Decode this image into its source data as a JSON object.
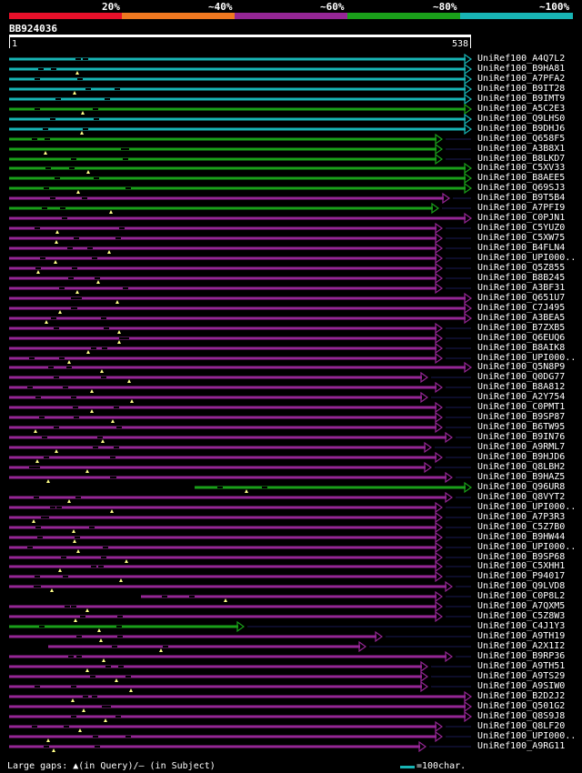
{
  "query": {
    "id": "BB924036",
    "start": "1",
    "end": "538"
  },
  "scale": {
    "labels": [
      "20%",
      "~40%",
      "~60%",
      "~80%",
      "~100%"
    ],
    "colors": [
      "#e8102a",
      "#f07820",
      "#952695",
      "#1aa01a",
      "#18b4b4"
    ]
  },
  "legend": {
    "text": "Large gaps: ▲(in Query)/— (in Subject)",
    "scale_text": "=100char."
  },
  "hits": [
    {
      "name": "UniRef100_A4Q7L2",
      "color": "cyan",
      "end": 518
    },
    {
      "name": "UniRef100_B9HA81",
      "color": "cyan",
      "end": 518
    },
    {
      "name": "UniRef100_A7PFA2",
      "color": "cyan",
      "end": 518
    },
    {
      "name": "UniRef100_B9IT28",
      "color": "cyan",
      "end": 518
    },
    {
      "name": "UniRef100_B9IMT9",
      "color": "cyan",
      "end": 518
    },
    {
      "name": "UniRef100_A5C2E3",
      "color": "green",
      "end": 518
    },
    {
      "name": "UniRef100_Q9LHS0",
      "color": "cyan",
      "end": 518
    },
    {
      "name": "UniRef100_B9DHJ6",
      "color": "cyan",
      "end": 518
    },
    {
      "name": "UniRef100_Q658F5",
      "color": "green",
      "end": 486
    },
    {
      "name": "UniRef100_A3B8X1",
      "color": "green",
      "end": 486
    },
    {
      "name": "UniRef100_B8LKD7",
      "color": "green",
      "end": 486
    },
    {
      "name": "UniRef100_C5XV33",
      "color": "green",
      "end": 518
    },
    {
      "name": "UniRef100_B8AEE5",
      "color": "green",
      "end": 518
    },
    {
      "name": "UniRef100_Q69SJ3",
      "color": "green",
      "end": 518
    },
    {
      "name": "UniRef100_B9T5B4",
      "color": "purple",
      "end": 494
    },
    {
      "name": "UniRef100_A7PFI9",
      "color": "green",
      "end": 482
    },
    {
      "name": "UniRef100_C0PJN1",
      "color": "purple",
      "end": 518
    },
    {
      "name": "UniRef100_C5YUZ0",
      "color": "purple",
      "end": 486
    },
    {
      "name": "UniRef100_C5XW75",
      "color": "purple",
      "end": 486
    },
    {
      "name": "UniRef100_B4FLN4",
      "color": "purple",
      "end": 486
    },
    {
      "name": "UniRef100_UPI000..",
      "color": "purple",
      "end": 486
    },
    {
      "name": "UniRef100_Q5Z855",
      "color": "purple",
      "end": 486
    },
    {
      "name": "UniRef100_B8B245",
      "color": "purple",
      "end": 486
    },
    {
      "name": "UniRef100_A3BF31",
      "color": "purple",
      "end": 486
    },
    {
      "name": "UniRef100_Q651U7",
      "color": "purple",
      "end": 518
    },
    {
      "name": "UniRef100_C7J495",
      "color": "purple",
      "end": 518
    },
    {
      "name": "UniRef100_A3BEA5",
      "color": "purple",
      "end": 518
    },
    {
      "name": "UniRef100_B7ZXB5",
      "color": "purple",
      "end": 486
    },
    {
      "name": "UniRef100_Q6EUQ6",
      "color": "purple",
      "end": 486
    },
    {
      "name": "UniRef100_B8AIK8",
      "color": "purple",
      "end": 486
    },
    {
      "name": "UniRef100_UPI000..",
      "color": "purple",
      "end": 486
    },
    {
      "name": "UniRef100_Q5N8P9",
      "color": "purple",
      "end": 518
    },
    {
      "name": "UniRef100_Q0DG77",
      "color": "purple",
      "end": 470
    },
    {
      "name": "UniRef100_B8A812",
      "color": "purple",
      "end": 486
    },
    {
      "name": "UniRef100_A2Y754",
      "color": "purple",
      "end": 470
    },
    {
      "name": "UniRef100_C0PMT1",
      "color": "purple",
      "end": 486
    },
    {
      "name": "UniRef100_B9SP87",
      "color": "purple",
      "end": 486
    },
    {
      "name": "UniRef100_B6TW95",
      "color": "purple",
      "end": 486
    },
    {
      "name": "UniRef100_B9IN76",
      "color": "purple",
      "end": 497
    },
    {
      "name": "UniRef100_A9RML7",
      "color": "purple",
      "end": 474
    },
    {
      "name": "UniRef100_B9HJD6",
      "color": "purple",
      "end": 486
    },
    {
      "name": "UniRef100_Q8LBH2",
      "color": "purple",
      "end": 474
    },
    {
      "name": "UniRef100_B9HAZ5",
      "color": "purple",
      "end": 497
    },
    {
      "name": "UniRef100_Q96UR8",
      "color": "green",
      "start": 214,
      "end": 518
    },
    {
      "name": "UniRef100_Q8VYT2",
      "color": "purple",
      "end": 497
    },
    {
      "name": "UniRef100_UPI000..",
      "color": "purple",
      "end": 486
    },
    {
      "name": "UniRef100_A7P3R3",
      "color": "purple",
      "end": 486
    },
    {
      "name": "UniRef100_C5Z7B0",
      "color": "purple",
      "end": 486
    },
    {
      "name": "UniRef100_B9HW44",
      "color": "purple",
      "end": 486
    },
    {
      "name": "UniRef100_UPI000..",
      "color": "purple",
      "end": 486
    },
    {
      "name": "UniRef100_B9SP68",
      "color": "purple",
      "end": 486
    },
    {
      "name": "UniRef100_C5XHH1",
      "color": "purple",
      "end": 486
    },
    {
      "name": "UniRef100_P94017",
      "color": "purple",
      "end": 486
    },
    {
      "name": "UniRef100_Q9LVD8",
      "color": "purple",
      "end": 497
    },
    {
      "name": "UniRef100_C0P8L2",
      "color": "purple",
      "start": 155,
      "end": 486
    },
    {
      "name": "UniRef100_A7QXM5",
      "color": "purple",
      "end": 486
    },
    {
      "name": "UniRef100_C5Z8W3",
      "color": "purple",
      "end": 486
    },
    {
      "name": "UniRef100_C4J1Y3",
      "color": "green",
      "end": 268
    },
    {
      "name": "UniRef100_A9TH19",
      "color": "purple",
      "end": 420
    },
    {
      "name": "UniRef100_A2X1I2",
      "color": "purple",
      "start": 53,
      "end": 402
    },
    {
      "name": "UniRef100_B9RP36",
      "color": "purple",
      "end": 497
    },
    {
      "name": "UniRef100_A9TH51",
      "color": "purple",
      "end": 470
    },
    {
      "name": "UniRef100_A9TS29",
      "color": "purple",
      "end": 470
    },
    {
      "name": "UniRef100_A9SIW0",
      "color": "purple",
      "end": 470
    },
    {
      "name": "UniRef100_B2D2J2",
      "color": "purple",
      "end": 518
    },
    {
      "name": "UniRef100_Q501G2",
      "color": "purple",
      "end": 518
    },
    {
      "name": "UniRef100_Q8S9J8",
      "color": "purple",
      "end": 518
    },
    {
      "name": "UniRef100_Q8LF20",
      "color": "purple",
      "end": 486
    },
    {
      "name": "UniRef100_UPI000..",
      "color": "purple",
      "end": 486
    },
    {
      "name": "UniRef100_A9RG11",
      "color": "purple",
      "end": 468
    }
  ]
}
